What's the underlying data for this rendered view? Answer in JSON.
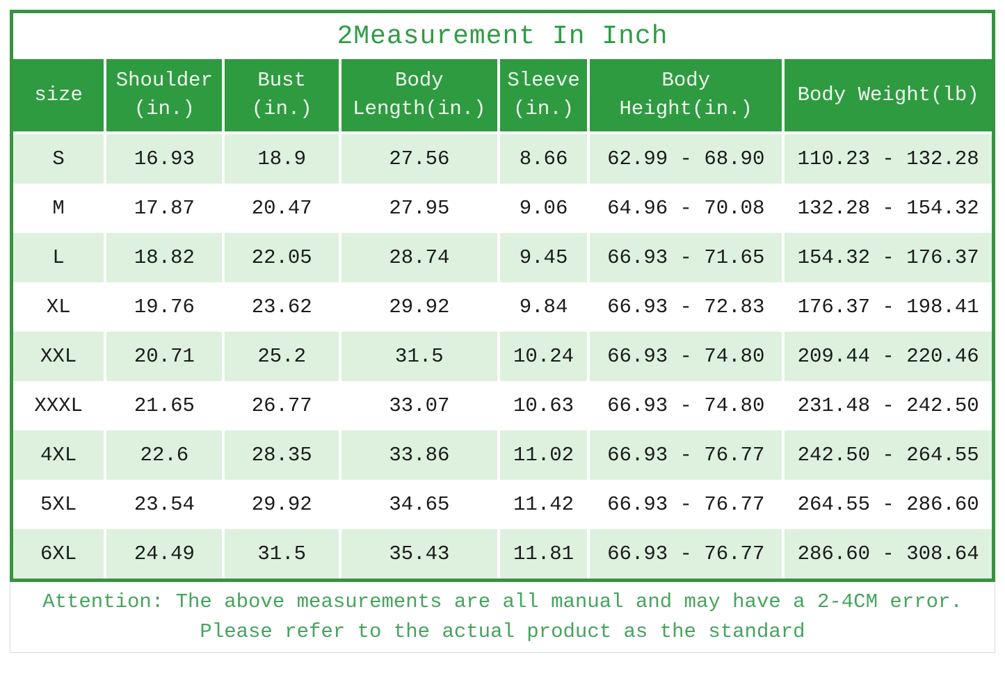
{
  "title": "2Measurement In Inch",
  "colors": {
    "header_green": "#2e9b40",
    "border_green": "#389341",
    "row_light_green": "#ddf1de",
    "title_green": "#2f9c45",
    "note_green": "#45a45e",
    "cell_text": "#1b1b1b"
  },
  "table": {
    "columns": [
      "size",
      "Shoulder\n(in.)",
      "Bust\n(in.)",
      "Body\nLength(in.)",
      "Sleeve\n(in.)",
      "Body\nHeight(in.)",
      "Body Weight(lb)"
    ],
    "column_widths_pct": [
      9.4,
      12.1,
      11.9,
      16.2,
      9.2,
      19.9,
      21.3
    ],
    "rows": [
      [
        "S",
        "16.93",
        "18.9",
        "27.56",
        "8.66",
        "62.99 - 68.90",
        "110.23 - 132.28"
      ],
      [
        "M",
        "17.87",
        "20.47",
        "27.95",
        "9.06",
        "64.96 - 70.08",
        "132.28 - 154.32"
      ],
      [
        "L",
        "18.82",
        "22.05",
        "28.74",
        "9.45",
        "66.93 - 71.65",
        "154.32 - 176.37"
      ],
      [
        "XL",
        "19.76",
        "23.62",
        "29.92",
        "9.84",
        "66.93 - 72.83",
        "176.37 - 198.41"
      ],
      [
        "XXL",
        "20.71",
        "25.2",
        "31.5",
        "10.24",
        "66.93 - 74.80",
        "209.44 - 220.46"
      ],
      [
        "XXXL",
        "21.65",
        "26.77",
        "33.07",
        "10.63",
        "66.93 - 74.80",
        "231.48 - 242.50"
      ],
      [
        "4XL",
        "22.6",
        "28.35",
        "33.86",
        "11.02",
        "66.93 - 76.77",
        "242.50 - 264.55"
      ],
      [
        "5XL",
        "23.54",
        "29.92",
        "34.65",
        "11.42",
        "66.93 - 76.77",
        "264.55 - 286.60"
      ],
      [
        "6XL",
        "24.49",
        "31.5",
        "35.43",
        "11.81",
        "66.93 - 76.77",
        "286.60 - 308.64"
      ]
    ]
  },
  "note": {
    "line1": "Attention: The above measurements are all manual and may have a 2-4CM error.",
    "line2": "Please refer to the actual product as the standard"
  }
}
